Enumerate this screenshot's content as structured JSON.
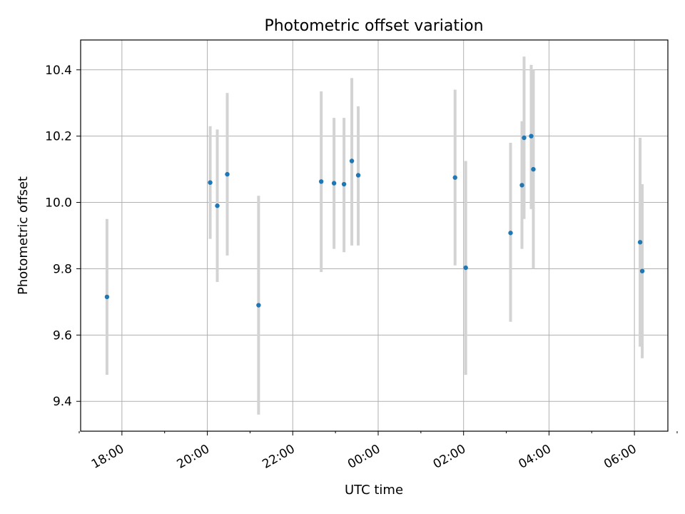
{
  "chart_data": {
    "type": "scatter",
    "title": "Photometric offset variation",
    "xlabel": "UTC time",
    "ylabel": "Photometric offset",
    "x_ticks": [
      "17:00",
      "18:00",
      "19:00",
      "20:00",
      "21:00",
      "22:00",
      "23:00",
      "00:00",
      "01:00",
      "02:00",
      "03:00",
      "04:00",
      "05:00",
      "06:00",
      "07:00"
    ],
    "x_tick_labels": [
      "18:00",
      "20:00",
      "22:00",
      "00:00",
      "02:00",
      "04:00",
      "06:00"
    ],
    "y_ticks": [
      9.4,
      9.6,
      9.8,
      10.0,
      10.2,
      10.4
    ],
    "y_tick_labels": [
      "9.4",
      "9.6",
      "9.8",
      "10.0",
      "10.2",
      "10.4"
    ],
    "xlim": [
      "17:02",
      "30:47"
    ],
    "ylim": [
      9.31,
      10.49
    ],
    "grid": true,
    "colors": {
      "point": "#1f77b4",
      "error_bar": "#d3d3d3",
      "grid": "#b0b0b0"
    },
    "points": [
      {
        "time": "17:39",
        "y": 9.715,
        "ylow": 9.48,
        "yhigh": 9.95
      },
      {
        "time": "20:04",
        "y": 10.06,
        "ylow": 9.89,
        "yhigh": 10.23
      },
      {
        "time": "20:14",
        "y": 9.99,
        "ylow": 9.76,
        "yhigh": 10.22
      },
      {
        "time": "20:28",
        "y": 10.085,
        "ylow": 9.84,
        "yhigh": 10.33
      },
      {
        "time": "21:12",
        "y": 9.69,
        "ylow": 9.36,
        "yhigh": 10.02
      },
      {
        "time": "22:40",
        "y": 10.063,
        "ylow": 9.79,
        "yhigh": 10.335
      },
      {
        "time": "22:58",
        "y": 10.058,
        "ylow": 9.86,
        "yhigh": 10.255
      },
      {
        "time": "23:12",
        "y": 10.055,
        "ylow": 9.85,
        "yhigh": 10.255
      },
      {
        "time": "23:23",
        "y": 10.125,
        "ylow": 9.87,
        "yhigh": 10.375
      },
      {
        "time": "23:32",
        "y": 10.082,
        "ylow": 9.87,
        "yhigh": 10.29
      },
      {
        "time": "25:48",
        "y": 10.075,
        "ylow": 9.81,
        "yhigh": 10.34
      },
      {
        "time": "26:03",
        "y": 9.803,
        "ylow": 9.48,
        "yhigh": 10.125
      },
      {
        "time": "27:06",
        "y": 9.908,
        "ylow": 9.64,
        "yhigh": 10.18
      },
      {
        "time": "27:22",
        "y": 10.052,
        "ylow": 9.86,
        "yhigh": 10.245
      },
      {
        "time": "27:25",
        "y": 10.195,
        "ylow": 9.95,
        "yhigh": 10.44
      },
      {
        "time": "27:35",
        "y": 10.2,
        "ylow": 9.98,
        "yhigh": 10.415
      },
      {
        "time": "27:38",
        "y": 10.1,
        "ylow": 9.8,
        "yhigh": 10.4
      },
      {
        "time": "30:08",
        "y": 9.88,
        "ylow": 9.565,
        "yhigh": 10.195
      },
      {
        "time": "30:11",
        "y": 9.793,
        "ylow": 9.53,
        "yhigh": 10.055
      }
    ]
  }
}
